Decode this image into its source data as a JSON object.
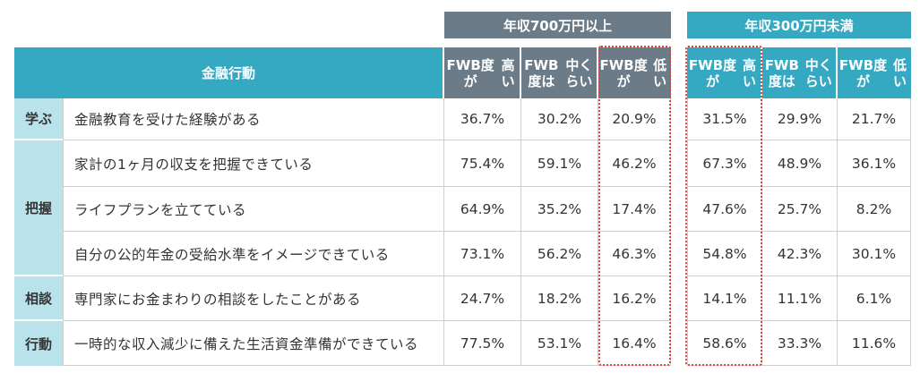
{
  "groups": {
    "high_income": "年収700万円以上",
    "low_income": "年収300万円未満"
  },
  "header": {
    "behavior": "金融行動",
    "fwb_high": [
      "FWB度が",
      "高い"
    ],
    "fwb_mid": [
      "FWB度は",
      "中くらい"
    ],
    "fwb_low": [
      "FWB度が",
      "低い"
    ]
  },
  "categories": [
    "学ぶ",
    "把握",
    "相談",
    "行動"
  ],
  "rows": [
    {
      "label": "金融教育を受けた経験がある",
      "v": [
        "36.7%",
        "30.2%",
        "20.9%",
        "31.5%",
        "29.9%",
        "21.7%"
      ]
    },
    {
      "label": "家計の1ヶ月の収支を把握できている",
      "v": [
        "75.4%",
        "59.1%",
        "46.2%",
        "67.3%",
        "48.9%",
        "36.1%"
      ]
    },
    {
      "label": "ライフプランを立てている",
      "v": [
        "64.9%",
        "35.2%",
        "17.4%",
        "47.6%",
        "25.7%",
        "8.2%"
      ]
    },
    {
      "label": "自分の公的年金の受給水準をイメージできている",
      "v": [
        "73.1%",
        "56.2%",
        "46.3%",
        "54.8%",
        "42.3%",
        "30.1%"
      ]
    },
    {
      "label": "専門家にお金まわりの相談をしたことがある",
      "v": [
        "24.7%",
        "18.2%",
        "16.2%",
        "14.1%",
        "11.1%",
        "6.1%"
      ]
    },
    {
      "label": "一時的な収入減少に備えた生活資金準備ができている",
      "v": [
        "77.5%",
        "53.1%",
        "16.4%",
        "58.6%",
        "33.3%",
        "11.6%"
      ]
    }
  ]
}
